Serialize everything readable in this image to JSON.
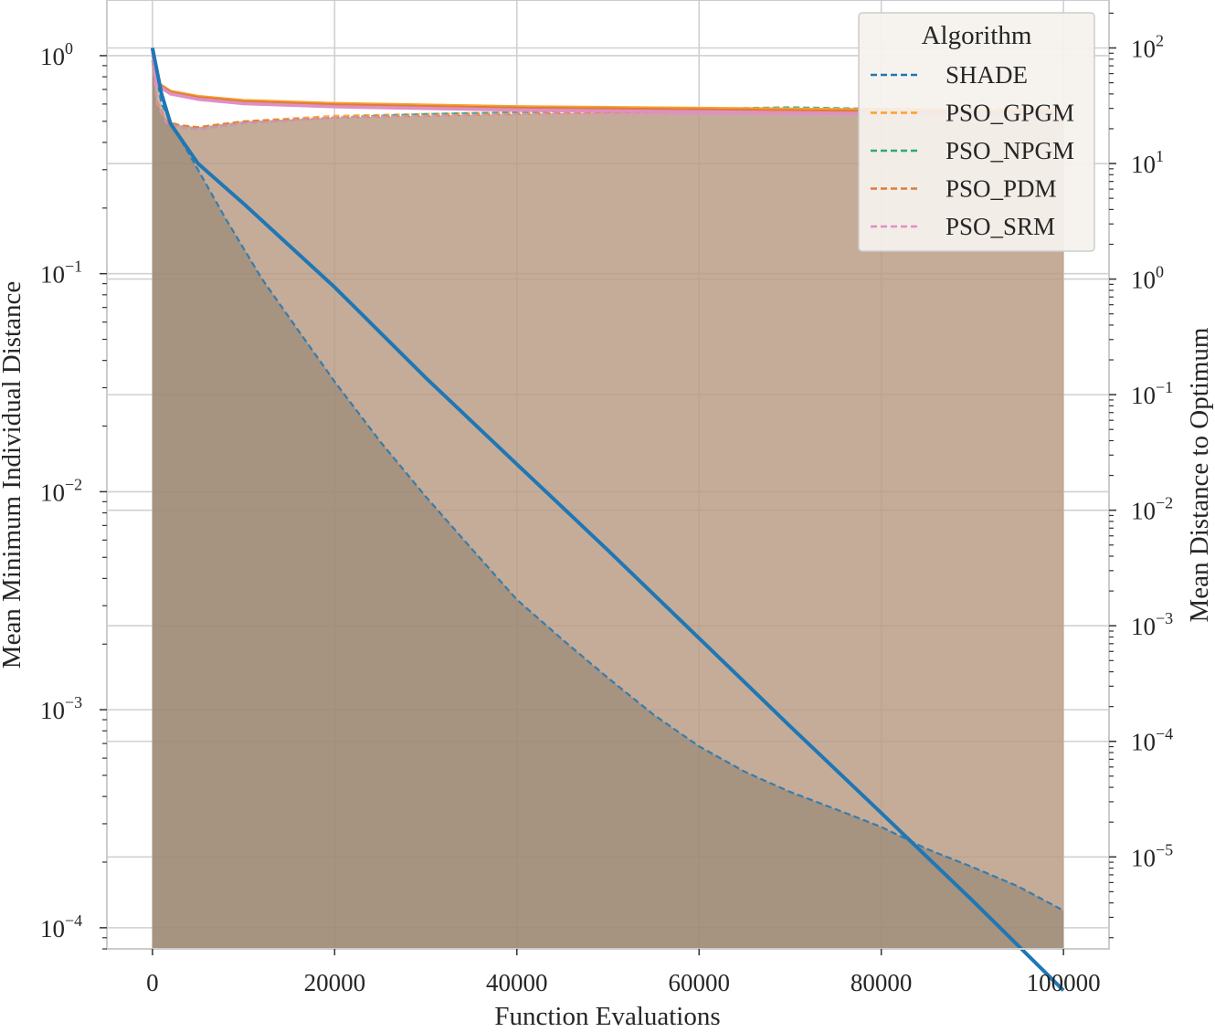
{
  "chart_data": {
    "type": "line",
    "xlabel": "Function Evaluations",
    "ylabel_left": "Mean Minimum Individual Distance",
    "ylabel_right": "Mean Distance to Optimum",
    "xlim": [
      -5000,
      105000
    ],
    "x_ticks": [
      0,
      20000,
      40000,
      60000,
      80000,
      100000
    ],
    "y_left": {
      "scale": "log",
      "lim": [
        8e-05,
        1.8
      ],
      "tick_exponents": [
        0,
        -1,
        -2,
        -3,
        -4
      ]
    },
    "y_right": {
      "scale": "log",
      "lim": [
        1.6e-06,
        260
      ],
      "tick_exponents": [
        2,
        1,
        0,
        -1,
        -2,
        -3,
        -4,
        -5
      ]
    },
    "grid": true,
    "legend": {
      "title": "Algorithm",
      "position": "top-right",
      "entries": [
        "SHADE",
        "PSO_GPGM",
        "PSO_NPGM",
        "PSO_PDM",
        "PSO_SRM"
      ]
    },
    "colors": {
      "SHADE": "#1f77b4",
      "PSO_GPGM": "#ff9f2a",
      "PSO_NPGM": "#2ca878",
      "PSO_PDM": "#e07b39",
      "PSO_SRM": "#e08fc4",
      "fill_grey": "#8d7f6c",
      "fill_orange": "#b89a82"
    },
    "series": [
      {
        "name": "SHADE",
        "axis": "left",
        "style": "dashed",
        "x": [
          0,
          1000,
          2000,
          3000,
          5000,
          8000,
          12000,
          16000,
          20000,
          25000,
          30000,
          35000,
          40000,
          45000,
          50000,
          55000,
          60000,
          65000,
          70000,
          75000,
          80000,
          85000,
          90000,
          95000,
          100000
        ],
        "y": [
          1.0,
          0.6,
          0.5,
          0.42,
          0.3,
          0.18,
          0.095,
          0.055,
          0.032,
          0.017,
          0.0095,
          0.0055,
          0.0032,
          0.0021,
          0.0014,
          0.00095,
          0.00068,
          0.00052,
          0.00042,
          0.00035,
          0.00029,
          0.00023,
          0.00019,
          0.000155,
          0.00012
        ]
      },
      {
        "name": "PSO_GPGM",
        "axis": "left",
        "style": "dashed",
        "x": [
          0,
          500,
          1500,
          3000,
          5000,
          10000,
          20000,
          30000,
          40000,
          50000,
          60000,
          70000,
          80000,
          90000,
          100000
        ],
        "y": [
          0.95,
          0.62,
          0.5,
          0.48,
          0.47,
          0.5,
          0.53,
          0.54,
          0.55,
          0.56,
          0.57,
          0.57,
          0.57,
          0.57,
          0.57
        ]
      },
      {
        "name": "PSO_NPGM",
        "axis": "left",
        "style": "dashed",
        "x": [
          0,
          500,
          1500,
          3000,
          5000,
          10000,
          20000,
          30000,
          40000,
          50000,
          60000,
          70000,
          80000,
          90000,
          100000
        ],
        "y": [
          0.95,
          0.6,
          0.49,
          0.47,
          0.46,
          0.49,
          0.52,
          0.54,
          0.55,
          0.56,
          0.57,
          0.58,
          0.57,
          0.56,
          0.56
        ]
      },
      {
        "name": "PSO_PDM",
        "axis": "left",
        "style": "dashed",
        "x": [
          0,
          500,
          1500,
          3000,
          5000,
          10000,
          20000,
          30000,
          40000,
          50000,
          60000,
          70000,
          80000,
          90000,
          100000
        ],
        "y": [
          0.95,
          0.61,
          0.5,
          0.48,
          0.47,
          0.5,
          0.52,
          0.53,
          0.54,
          0.55,
          0.55,
          0.55,
          0.55,
          0.55,
          0.55
        ]
      },
      {
        "name": "PSO_SRM",
        "axis": "left",
        "style": "dashed",
        "x": [
          0,
          500,
          1500,
          3000,
          5000,
          10000,
          20000,
          30000,
          40000,
          50000,
          60000,
          70000,
          80000,
          90000,
          100000
        ],
        "y": [
          0.95,
          0.6,
          0.49,
          0.47,
          0.46,
          0.49,
          0.52,
          0.53,
          0.54,
          0.54,
          0.54,
          0.54,
          0.54,
          0.54,
          0.54
        ]
      },
      {
        "name": "SHADE",
        "axis": "right",
        "style": "solid",
        "x": [
          0,
          1000,
          2000,
          5000,
          10000,
          20000,
          30000,
          40000,
          50000,
          60000,
          70000,
          80000,
          90000,
          100000
        ],
        "y": [
          100,
          40,
          22,
          10,
          4.5,
          0.85,
          0.14,
          0.025,
          0.0045,
          0.00078,
          0.000135,
          2.4e-05,
          4.2e-06,
          7e-07
        ]
      },
      {
        "name": "PSO_GPGM",
        "axis": "right",
        "style": "solid",
        "x": [
          0,
          500,
          2000,
          5000,
          10000,
          20000,
          30000,
          40000,
          50000,
          60000,
          70000,
          80000,
          90000,
          100000
        ],
        "y": [
          100,
          50,
          42,
          38,
          35,
          33,
          32,
          31,
          30.5,
          30,
          29.5,
          29,
          28.5,
          28
        ]
      },
      {
        "name": "PSO_NPGM",
        "axis": "right",
        "style": "solid",
        "x": [
          0,
          500,
          2000,
          5000,
          10000,
          20000,
          30000,
          40000,
          50000,
          60000,
          70000,
          80000,
          90000,
          100000
        ],
        "y": [
          100,
          49,
          41,
          37,
          34,
          32,
          31,
          30,
          29.5,
          29,
          28.5,
          28,
          27.5,
          27
        ]
      },
      {
        "name": "PSO_PDM",
        "axis": "right",
        "style": "solid",
        "x": [
          0,
          500,
          2000,
          5000,
          10000,
          20000,
          30000,
          40000,
          50000,
          60000,
          70000,
          80000,
          90000,
          100000
        ],
        "y": [
          100,
          49,
          41,
          37,
          34,
          32,
          31,
          30,
          29.5,
          29,
          28.5,
          28,
          27.5,
          27
        ]
      },
      {
        "name": "PSO_SRM",
        "axis": "right",
        "style": "solid",
        "x": [
          0,
          500,
          2000,
          5000,
          10000,
          20000,
          30000,
          40000,
          50000,
          60000,
          70000,
          80000,
          90000,
          100000
        ],
        "y": [
          100,
          48,
          40,
          36,
          33,
          31,
          30,
          29,
          28.5,
          28,
          27.5,
          27,
          26.5,
          26
        ]
      }
    ]
  }
}
